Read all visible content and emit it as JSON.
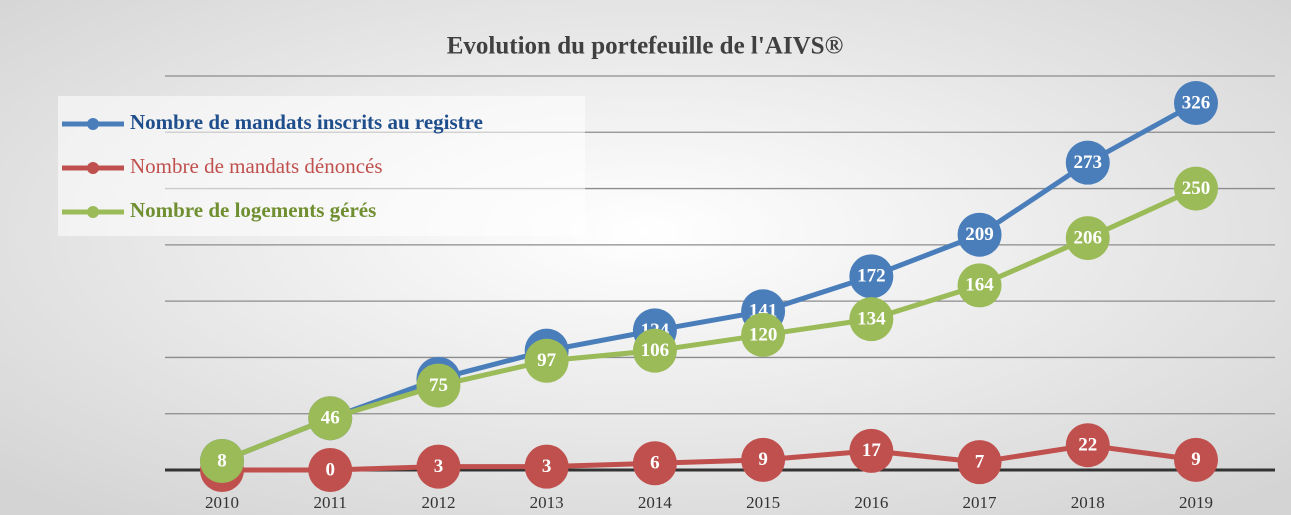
{
  "chart_data": {
    "type": "line",
    "title": "Evolution du portefeuille de l'AIVS®",
    "categories": [
      "2010",
      "2011",
      "2012",
      "2013",
      "2014",
      "2015",
      "2016",
      "2017",
      "2018",
      "2019"
    ],
    "series": [
      {
        "name": "Nombre de mandats inscrits au registre",
        "color": "#4a7ebb",
        "values": [
          8,
          46,
          81,
          106,
          124,
          141,
          172,
          209,
          273,
          326
        ]
      },
      {
        "name": "Nombre de mandats dénoncés",
        "color": "#c0504d",
        "values": [
          0,
          0,
          3,
          3,
          6,
          9,
          17,
          7,
          22,
          9
        ]
      },
      {
        "name": "Nombre de logements gérés",
        "color": "#9bbb59",
        "values": [
          8,
          46,
          75,
          97,
          106,
          120,
          134,
          164,
          206,
          250
        ]
      }
    ],
    "ylim": [
      0,
      350
    ],
    "yticks": [
      0,
      50,
      100,
      150,
      200,
      250,
      300,
      350
    ],
    "grid": true,
    "legend": "top-left"
  }
}
